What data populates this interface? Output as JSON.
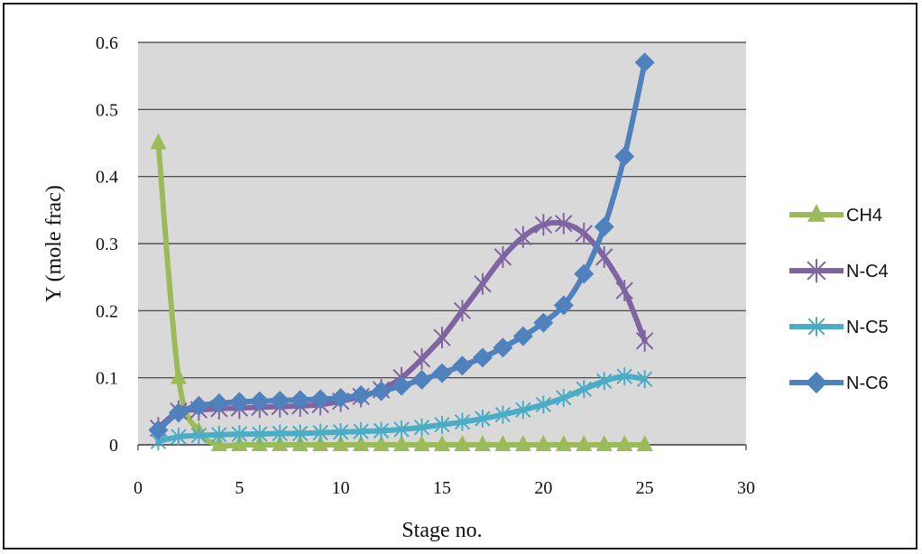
{
  "chart_data": {
    "type": "line",
    "xlabel": "Stage no.",
    "ylabel": "Y (mole frac)",
    "xlim": [
      0,
      30
    ],
    "ylim": [
      0,
      0.6
    ],
    "x_ticks": [
      "0",
      "5",
      "10",
      "15",
      "20",
      "25",
      "30"
    ],
    "y_ticks": [
      "0",
      "0.1",
      "0.2",
      "0.3",
      "0.4",
      "0.5",
      "0.6"
    ],
    "grid": "horizontal",
    "plot_background": "#d9d9d9",
    "legend_position": "right",
    "x": [
      1,
      2,
      3,
      4,
      5,
      6,
      7,
      8,
      9,
      10,
      11,
      12,
      13,
      14,
      15,
      16,
      17,
      18,
      19,
      20,
      21,
      22,
      23,
      24,
      25
    ],
    "series": [
      {
        "name": "CH4",
        "color": "#9bbb59",
        "marker": "triangle",
        "values": [
          0.45,
          0.1,
          0.02,
          0,
          0,
          0,
          0,
          0,
          0,
          0,
          0,
          0,
          0,
          0,
          0,
          0,
          0,
          0,
          0,
          0,
          0,
          0,
          0,
          0,
          0
        ]
      },
      {
        "name": "N-C4",
        "color": "#8064a2",
        "marker": "star",
        "values": [
          0.025,
          0.05,
          0.052,
          0.054,
          0.055,
          0.056,
          0.057,
          0.058,
          0.06,
          0.065,
          0.072,
          0.082,
          0.1,
          0.128,
          0.16,
          0.2,
          0.24,
          0.28,
          0.31,
          0.328,
          0.33,
          0.315,
          0.28,
          0.23,
          0.155
        ]
      },
      {
        "name": "N-C5",
        "color": "#4bacc6",
        "marker": "x",
        "values": [
          0.005,
          0.012,
          0.014,
          0.015,
          0.016,
          0.016,
          0.017,
          0.017,
          0.018,
          0.019,
          0.02,
          0.021,
          0.023,
          0.026,
          0.03,
          0.034,
          0.039,
          0.045,
          0.052,
          0.06,
          0.07,
          0.083,
          0.095,
          0.102,
          0.098
        ]
      },
      {
        "name": "N-C6",
        "color": "#4f81bd",
        "marker": "diamond",
        "values": [
          0.022,
          0.048,
          0.058,
          0.062,
          0.064,
          0.065,
          0.066,
          0.067,
          0.068,
          0.07,
          0.074,
          0.08,
          0.088,
          0.097,
          0.107,
          0.118,
          0.13,
          0.145,
          0.162,
          0.182,
          0.208,
          0.255,
          0.325,
          0.43,
          0.57
        ]
      }
    ]
  }
}
